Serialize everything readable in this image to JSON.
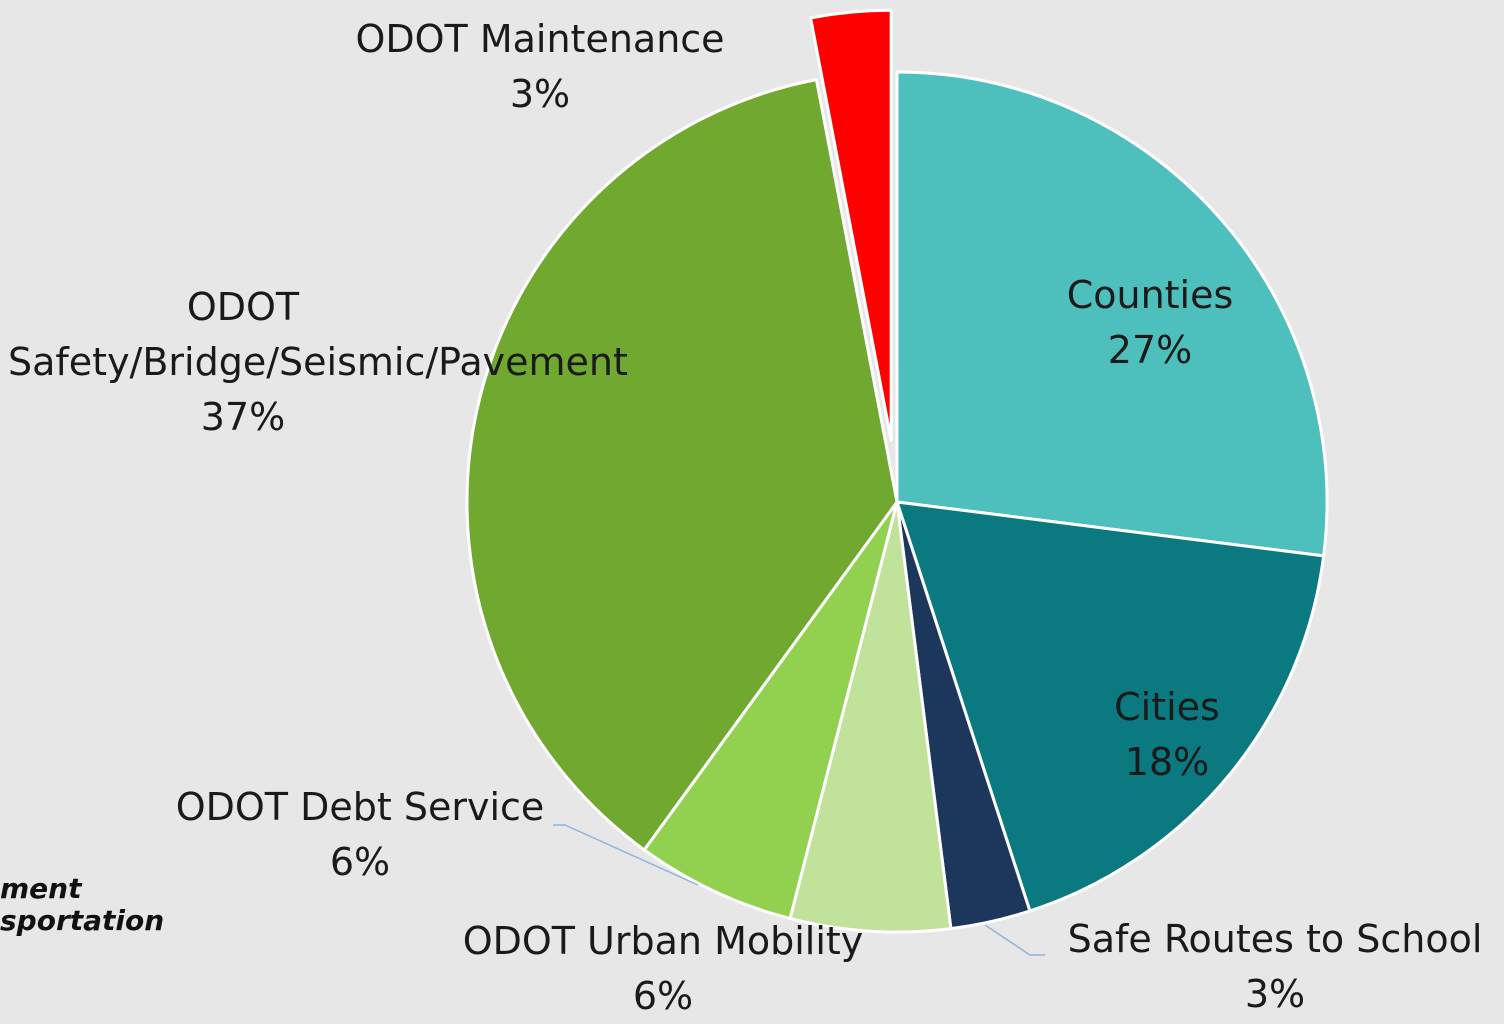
{
  "chart_data": {
    "type": "pie",
    "categories": [
      "Counties",
      "Cities",
      "Safe Routes to School",
      "ODOT Urban Mobility",
      "ODOT Debt Service",
      "ODOT Safety/Bridge/Seismic/Pavement",
      "ODOT Maintenance"
    ],
    "values": [
      27,
      18,
      3,
      6,
      6,
      37,
      3
    ],
    "value_labels": [
      "27%",
      "18%",
      "3%",
      "6%",
      "6%",
      "37%",
      "3%"
    ],
    "colors": [
      "#4dbfbd",
      "#0a7a80",
      "#1d365c",
      "#c1e29a",
      "#92d050",
      "#70a830",
      "#ff0000"
    ],
    "exploded": [
      false,
      false,
      false,
      false,
      false,
      false,
      true
    ]
  },
  "logo_text": [
    "ment",
    "sportation"
  ]
}
